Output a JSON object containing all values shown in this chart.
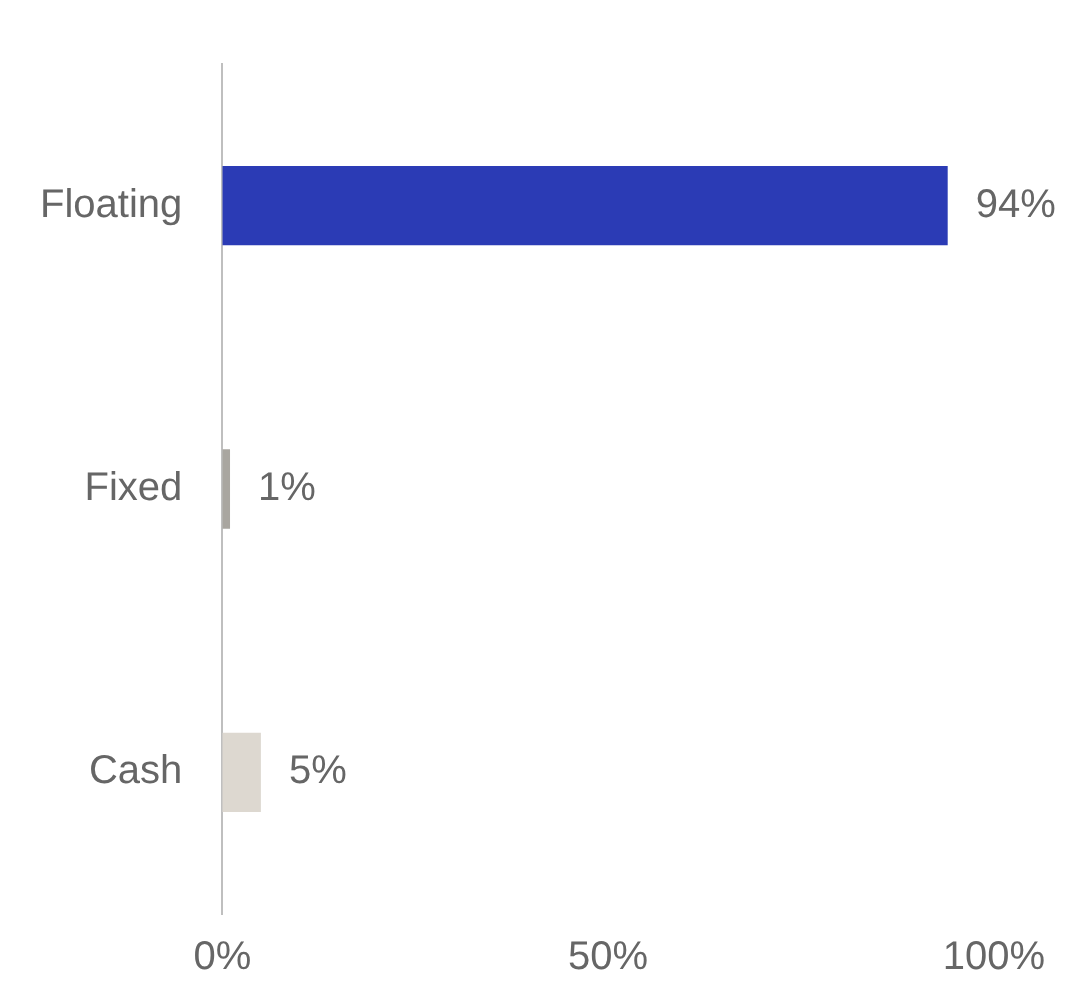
{
  "chart_data": {
    "type": "bar",
    "orientation": "horizontal",
    "categories": [
      "Floating",
      "Fixed",
      "Cash"
    ],
    "values": [
      94,
      1,
      5
    ],
    "colors": [
      "#2b3bb5",
      "#a9a6a0",
      "#ddd8d0"
    ],
    "value_labels": [
      "94%",
      "1%",
      "5%"
    ],
    "xlim": [
      0,
      100
    ],
    "xticks": [
      {
        "value": 0,
        "label": "0%"
      },
      {
        "value": 50,
        "label": "50%"
      },
      {
        "value": 100,
        "label": "100%"
      }
    ],
    "grid": false,
    "legend": false
  }
}
